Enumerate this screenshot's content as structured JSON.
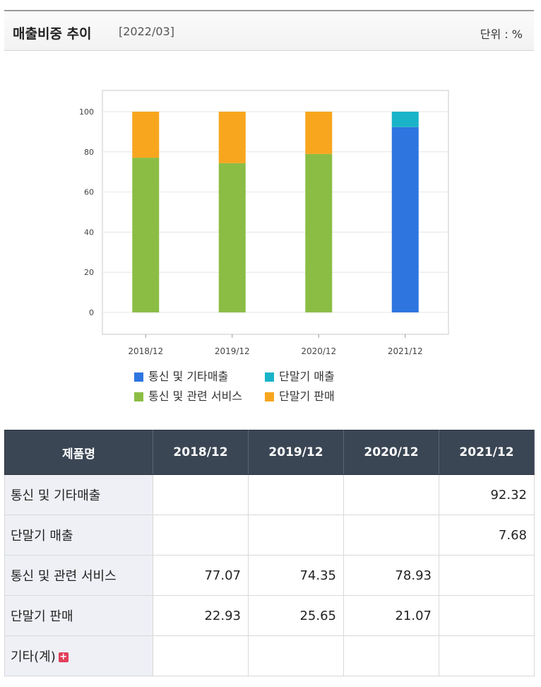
{
  "header": {
    "title": "매출비중 추이",
    "date": "[2022/03]",
    "unit": "단위 : %"
  },
  "colors": {
    "telecom_other": "#2e75e0",
    "device_sales_rev": "#19b4c8",
    "telecom_services": "#8bbd45",
    "device_sale": "#f7a61e"
  },
  "chart_data": {
    "type": "bar",
    "stacked": true,
    "categories": [
      "2018/12",
      "2019/12",
      "2020/12",
      "2021/12"
    ],
    "series": [
      {
        "name": "통신 및 기타매출",
        "color": "#2e75e0",
        "values": [
          0,
          0,
          0,
          92.32
        ]
      },
      {
        "name": "단말기 매출",
        "color": "#19b4c8",
        "values": [
          0,
          0,
          0,
          7.68
        ]
      },
      {
        "name": "통신 및 관련 서비스",
        "color": "#8bbd45",
        "values": [
          77.07,
          74.35,
          78.93,
          0
        ]
      },
      {
        "name": "단말기 판매",
        "color": "#f7a61e",
        "values": [
          22.93,
          25.65,
          21.07,
          0
        ]
      }
    ],
    "stack_order": [
      2,
      3,
      0,
      1
    ],
    "ylim": [
      0,
      100
    ],
    "yticks": [
      "0",
      "20",
      "40",
      "60",
      "80",
      "100"
    ],
    "grid": true,
    "legend_position": "bottom"
  },
  "table": {
    "headers": [
      "제품명",
      "2018/12",
      "2019/12",
      "2020/12",
      "2021/12"
    ],
    "rows": [
      {
        "name": "통신 및 기타매출",
        "values": [
          "",
          "",
          "",
          "92.32"
        ]
      },
      {
        "name": "단말기 매출",
        "values": [
          "",
          "",
          "",
          "7.68"
        ]
      },
      {
        "name": "통신 및 관련 서비스",
        "values": [
          "77.07",
          "74.35",
          "78.93",
          ""
        ]
      },
      {
        "name": "단말기 판매",
        "values": [
          "22.93",
          "25.65",
          "21.07",
          ""
        ]
      },
      {
        "name": "기타(계)",
        "values": [
          "",
          "",
          "",
          ""
        ],
        "expandable": true
      }
    ]
  }
}
